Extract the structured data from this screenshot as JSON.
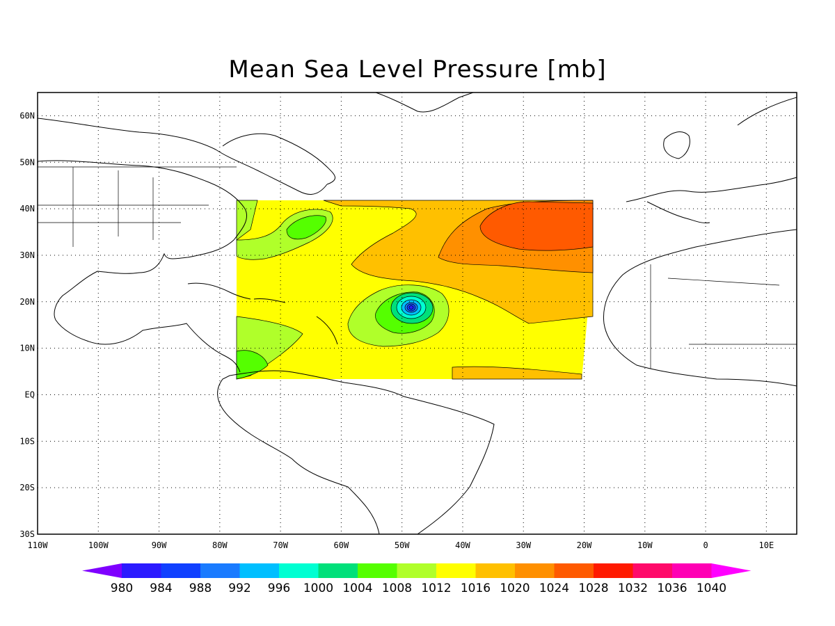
{
  "title": "Mean Sea Level Pressure [mb]",
  "map": {
    "lon_range": [
      -110,
      15
    ],
    "lat_range": [
      -30,
      65
    ],
    "lon_ticks": [
      "110W",
      "100W",
      "90W",
      "80W",
      "70W",
      "60W",
      "50W",
      "40W",
      "30W",
      "20W",
      "10W",
      "0",
      "10E"
    ],
    "lat_ticks": [
      "30S",
      "20S",
      "10S",
      "EQ",
      "10N",
      "20N",
      "30N",
      "40N",
      "50N",
      "60N"
    ],
    "gridlines": "dotted"
  },
  "colorbar": {
    "levels": [
      "980",
      "984",
      "988",
      "992",
      "996",
      "1000",
      "1004",
      "1008",
      "1012",
      "1016",
      "1020",
      "1024",
      "1028",
      "1032",
      "1036",
      "1040"
    ],
    "colors": [
      "#7f00ff",
      "#2b1bff",
      "#1040ff",
      "#1a7bff",
      "#00bfff",
      "#00ffd2",
      "#00e07a",
      "#55ff00",
      "#b0ff2a",
      "#ffff00",
      "#ffc000",
      "#ff9000",
      "#ff5a00",
      "#ff1a00",
      "#ff0a6a",
      "#ff00b4",
      "#ff00ff"
    ]
  },
  "field": {
    "domain": "Atlantic basin ~77W–19W, 3N–42N",
    "low_center": {
      "lon": -48.5,
      "lat": 18.5,
      "pressure_mb": 980
    },
    "high_center": {
      "lon": -29,
      "lat": 37.5,
      "pressure_mb": 1028
    }
  }
}
